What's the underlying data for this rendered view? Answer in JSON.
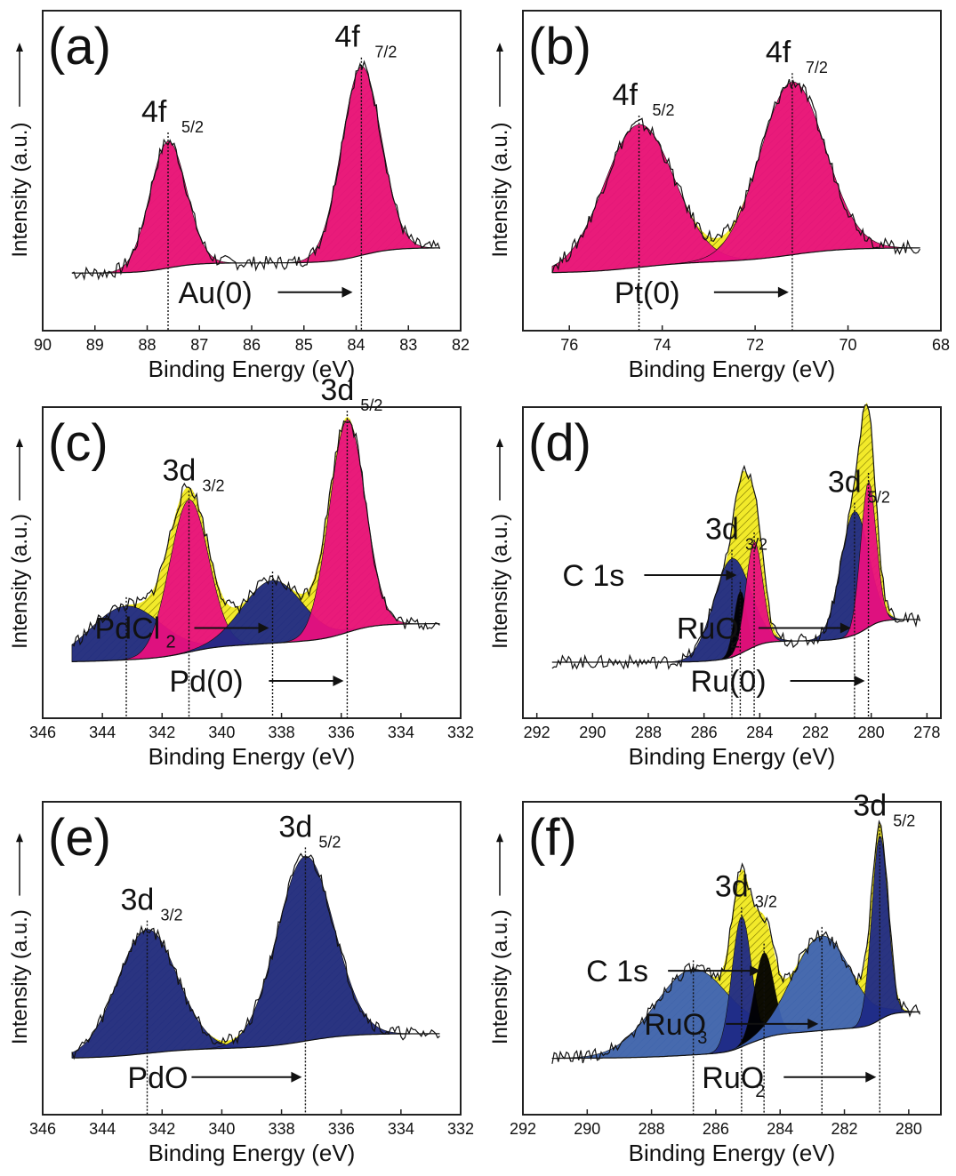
{
  "colors": {
    "magenta": "#e8107e",
    "navy": "#1f2a86",
    "blue": "#3d63b5",
    "yellow": "#f2ea2a",
    "black": "#000000"
  },
  "chart_data": [
    {
      "id": "a",
      "type": "line",
      "label": "(a)",
      "xlabel": "Binding Energy (eV)",
      "ylabel": "Intensity (a.u.)",
      "xlim": [
        90,
        82
      ],
      "xticks": [
        "90",
        "89",
        "88",
        "87",
        "86",
        "85",
        "84",
        "83",
        "82"
      ],
      "peaks": [
        {
          "x": 87.6,
          "height": 0.55,
          "width": 0.35,
          "color": "magenta",
          "label": "4f",
          "sub": "5/2"
        },
        {
          "x": 83.9,
          "height": 0.82,
          "width": 0.38,
          "color": "magenta",
          "label": "4f",
          "sub": "7/2"
        }
      ],
      "annotations": [
        {
          "text": "Au(0)",
          "x": 84.0
        }
      ]
    },
    {
      "id": "b",
      "type": "line",
      "label": "(b)",
      "xlabel": "Binding Energy (eV)",
      "ylabel": "Intensity (a.u.)",
      "xlim": [
        77,
        68
      ],
      "xticks": [
        "76",
        "74",
        "72",
        "70",
        "68"
      ],
      "peaks": [
        {
          "x": 74.5,
          "height": 0.62,
          "width": 0.75,
          "color": "magenta",
          "label": "4f",
          "sub": "5/2"
        },
        {
          "x": 71.2,
          "height": 0.75,
          "width": 0.7,
          "color": "magenta",
          "label": "4f",
          "sub": "7/2"
        }
      ],
      "annotations": [
        {
          "text": "Pt(0)",
          "x": 71.2
        }
      ]
    },
    {
      "id": "c",
      "type": "line",
      "label": "(c)",
      "xlabel": "Binding Energy (eV)",
      "ylabel": "Intensity (a.u.)",
      "xlim": [
        346,
        332
      ],
      "xticks": [
        "346",
        "344",
        "342",
        "340",
        "338",
        "336",
        "334",
        "332"
      ],
      "peaks": [
        {
          "x": 343.2,
          "height": 0.24,
          "width": 1.2,
          "color": "navy"
        },
        {
          "x": 341.1,
          "height": 0.68,
          "width": 0.65,
          "color": "magenta",
          "label": "3d",
          "sub": "3/2"
        },
        {
          "x": 338.3,
          "height": 0.28,
          "width": 1.0,
          "color": "navy"
        },
        {
          "x": 335.8,
          "height": 0.95,
          "width": 0.6,
          "color": "magenta",
          "label": "3d",
          "sub": "5/2"
        }
      ],
      "annotations": [
        {
          "text": "Pd(0)",
          "x": 335.8
        },
        {
          "text": "PdCl",
          "sub": "2",
          "x": 338.3
        }
      ]
    },
    {
      "id": "d",
      "type": "line",
      "label": "(d)",
      "xlabel": "Binding Energy (eV)",
      "ylabel": "Intensity (a.u.)",
      "xlim": [
        292.5,
        277.5
      ],
      "xticks": [
        "292",
        "290",
        "288",
        "286",
        "284",
        "282",
        "280",
        "278"
      ],
      "peaks": [
        {
          "x": 285.0,
          "height": 0.44,
          "width": 0.65,
          "color": "navy",
          "label": "3d",
          "sub": "3/2"
        },
        {
          "x": 284.7,
          "height": 0.28,
          "width": 0.22,
          "color": "black"
        },
        {
          "x": 284.2,
          "height": 0.47,
          "width": 0.3,
          "color": "magenta"
        },
        {
          "x": 280.6,
          "height": 0.55,
          "width": 0.5,
          "color": "navy",
          "label": "3d",
          "sub": "5/2"
        },
        {
          "x": 280.1,
          "height": 0.65,
          "width": 0.28,
          "color": "magenta"
        }
      ],
      "annotations": [
        {
          "text": "Ru(0)",
          "x": 280.1
        },
        {
          "text": "RuO",
          "sub": "2",
          "x": 280.6
        },
        {
          "text": "C 1s",
          "x": 284.7
        }
      ]
    },
    {
      "id": "e",
      "type": "line",
      "label": "(e)",
      "xlabel": "Binding Energy (eV)",
      "ylabel": "Intensity (a.u.)",
      "xlim": [
        346,
        332
      ],
      "xticks": [
        "346",
        "344",
        "342",
        "340",
        "338",
        "336",
        "334",
        "332"
      ],
      "peaks": [
        {
          "x": 342.5,
          "height": 0.55,
          "width": 1.0,
          "color": "navy",
          "label": "3d",
          "sub": "3/2"
        },
        {
          "x": 337.2,
          "height": 0.82,
          "width": 0.95,
          "color": "navy",
          "label": "3d",
          "sub": "5/2"
        }
      ],
      "annotations": [
        {
          "text": "PdO",
          "x": 337.2
        }
      ]
    },
    {
      "id": "f",
      "type": "line",
      "label": "(f)",
      "xlabel": "Binding Energy (eV)",
      "ylabel": "Intensity (a.u.)",
      "xlim": [
        292,
        279
      ],
      "xticks": [
        "292",
        "290",
        "288",
        "286",
        "284",
        "282",
        "280"
      ],
      "peaks": [
        {
          "x": 286.7,
          "height": 0.38,
          "width": 1.2,
          "color": "blue"
        },
        {
          "x": 285.2,
          "height": 0.58,
          "width": 0.3,
          "color": "navy",
          "label": "3d",
          "sub": "3/2"
        },
        {
          "x": 284.5,
          "height": 0.38,
          "width": 0.3,
          "color": "black"
        },
        {
          "x": 282.7,
          "height": 0.42,
          "width": 0.9,
          "color": "blue"
        },
        {
          "x": 280.9,
          "height": 0.82,
          "width": 0.25,
          "color": "navy",
          "label": "3d",
          "sub": "5/2"
        }
      ],
      "annotations": [
        {
          "text": "RuO",
          "sub": "2",
          "x": 280.9
        },
        {
          "text": "RuO",
          "sub": "3",
          "x": 282.7
        },
        {
          "text": "C 1s",
          "x": 284.5
        }
      ]
    }
  ]
}
